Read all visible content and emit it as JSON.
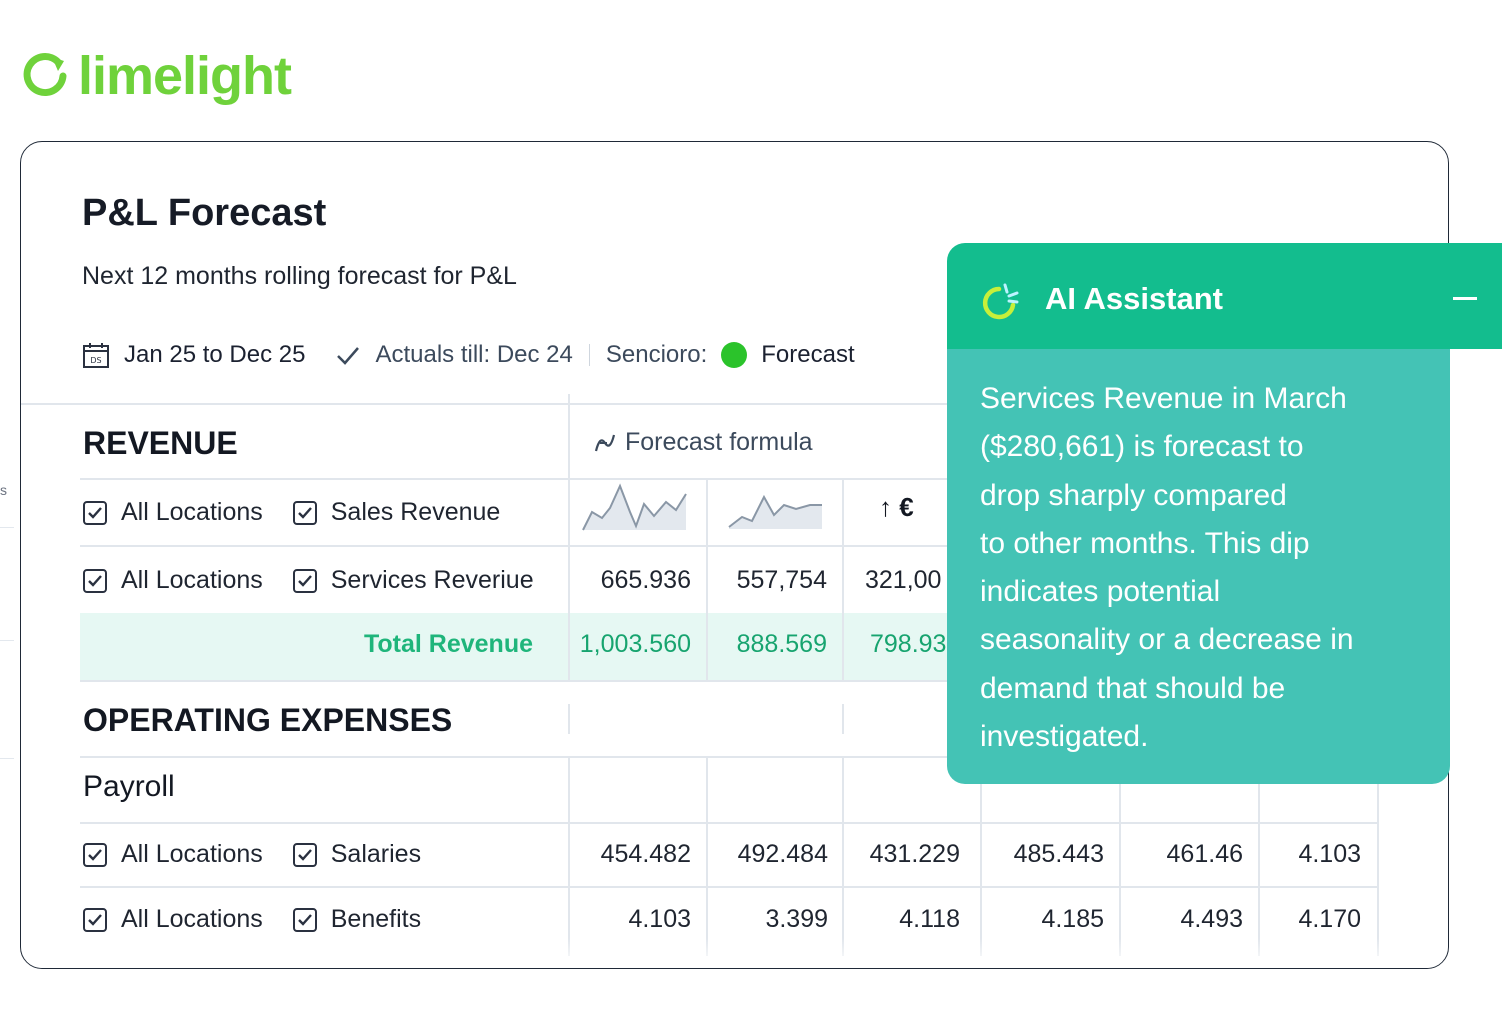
{
  "brand": {
    "name": "limelight",
    "color": "#6fd23b"
  },
  "edge_stub": "s",
  "report": {
    "title": "P&L Forecast",
    "subtitle": "Next 12 months rolling forecast for P&L",
    "date_range": "Jan 25 to Dec 25",
    "actuals": "Actuals till: Dec 24",
    "scenario_label": "Sencioro:",
    "scenario_value": "Forecast",
    "scenario_color": "#2bc32b"
  },
  "table": {
    "revenue_heading": "REVENUE",
    "formula_label": "Forecast formula",
    "currency_toggle": "↑ €",
    "rows": [
      {
        "location": "All Locations",
        "account": "Sales Revenue"
      },
      {
        "location": "All Locations",
        "account": "Services Reveriue",
        "values": [
          "665.936",
          "557,754",
          "321,00"
        ]
      }
    ],
    "total_revenue": {
      "label": "Total Revenue",
      "values": [
        "1,003.560",
        "888.569",
        "798.93"
      ]
    },
    "opex_heading": "OPERATING EXPENSES",
    "payroll_heading": "Payroll",
    "payroll_rows": [
      {
        "location": "All Locations",
        "account": "Salaries",
        "values": [
          "454.482",
          "492.484",
          "431.229",
          "485.443",
          "461.46",
          "4.103"
        ]
      },
      {
        "location": "All Locations",
        "account": "Benefits",
        "values": [
          "4.103",
          "3.399",
          "4.118",
          "4.185",
          "4.493",
          "4.170"
        ]
      }
    ]
  },
  "ai_assistant": {
    "title": "AI Assistant",
    "header_color": "#13bd8e",
    "body_color": "#44c3b5",
    "message_lines": [
      "Services Revenue in March",
      "($280,661) is forecast to",
      "drop sharply compared",
      "to other months. This dip",
      "indicates potential",
      "seasonality or a decrease in",
      "demand that should be",
      "investigated."
    ]
  }
}
